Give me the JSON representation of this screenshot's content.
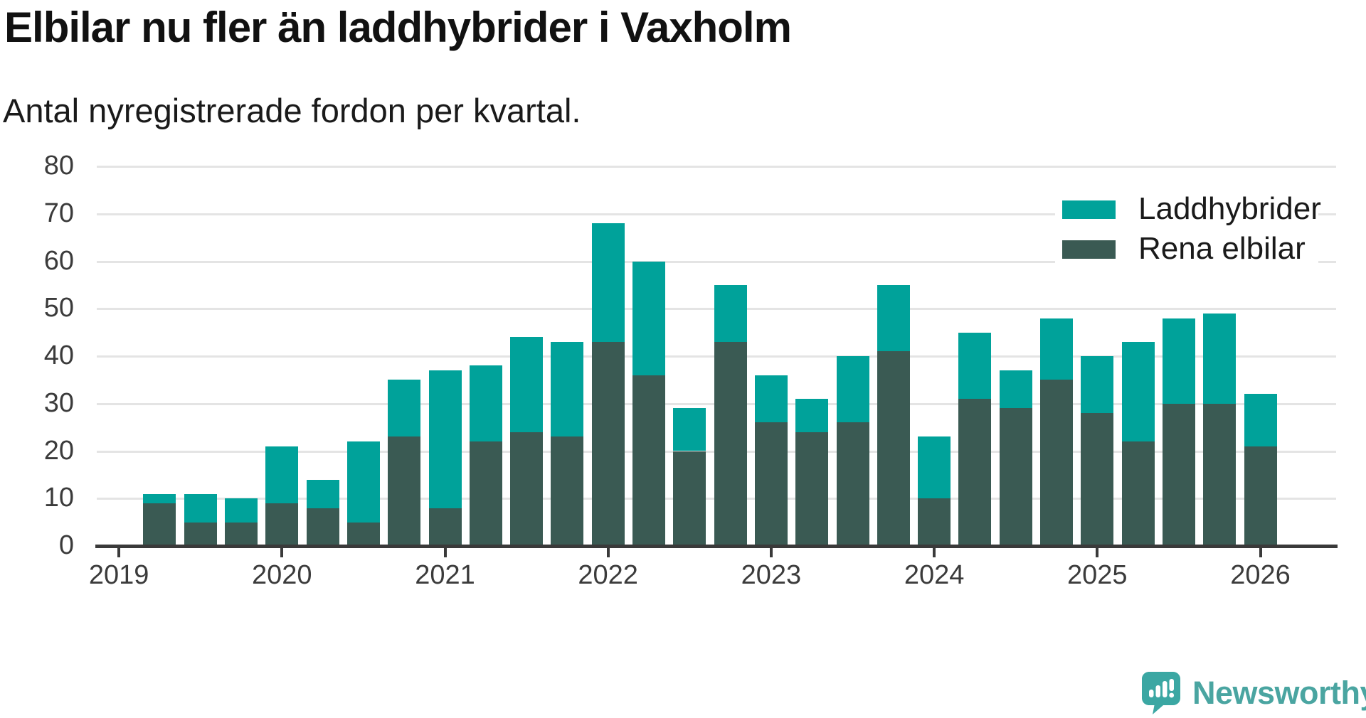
{
  "title": "Elbilar nu fler än laddhybrider i Vaxholm",
  "subtitle": "Antal nyregistrerade fordon per kvartal.",
  "legend": {
    "position": "top-right",
    "items": [
      {
        "label": "Laddhybrider",
        "color": "#00a29a"
      },
      {
        "label": "Rena elbilar",
        "color": "#3a5a53"
      }
    ]
  },
  "branding": {
    "name": "Newsworthy",
    "color": "#4aa5a1",
    "icon": "newsworthy-speech-bubble-bar-chart-icon"
  },
  "colors": {
    "background": "#ffffff",
    "laddhybrider": "#00a29a",
    "rena_elbilar": "#3a5a53",
    "gridline": "#e4e4e4",
    "axis": "#3a3a3a",
    "axis_text": "#3b3b3b",
    "title_text": "#111111"
  },
  "chart_data": {
    "type": "bar",
    "stacked": true,
    "stacked_bottom_to_top": true,
    "title": "Elbilar nu fler än laddhybrider i Vaxholm",
    "subtitle": "Antal nyregistrerade fordon per kvartal.",
    "xlabel": "",
    "ylabel": "",
    "ylim": [
      0,
      80
    ],
    "ytick_step": 10,
    "grid": "horizontal",
    "legend_position": "top-right",
    "x_tick_labels": [
      "2019",
      "2020",
      "2021",
      "2022",
      "2023",
      "2024",
      "2025",
      "2026"
    ],
    "categories": [
      "2019 Q2",
      "2019 Q3",
      "2019 Q4",
      "2020 Q1",
      "2020 Q2",
      "2020 Q3",
      "2020 Q4",
      "2021 Q1",
      "2021 Q2",
      "2021 Q3",
      "2021 Q4",
      "2022 Q1",
      "2022 Q2",
      "2022 Q3",
      "2022 Q4",
      "2023 Q1",
      "2023 Q2",
      "2023 Q3",
      "2023 Q4",
      "2024 Q1",
      "2024 Q2",
      "2024 Q3",
      "2024 Q4",
      "2025 Q1",
      "2025 Q2",
      "2025 Q3",
      "2025 Q4",
      "2026 Q1"
    ],
    "series": [
      {
        "name": "Rena elbilar",
        "color": "#3a5a53",
        "values": [
          9,
          5,
          5,
          9,
          8,
          5,
          23,
          8,
          22,
          24,
          23,
          43,
          36,
          20,
          43,
          26,
          24,
          26,
          41,
          10,
          31,
          29,
          35,
          28,
          22,
          30,
          30,
          21
        ]
      },
      {
        "name": "Laddhybrider",
        "color": "#00a29a",
        "values": [
          2,
          6,
          5,
          12,
          6,
          17,
          12,
          29,
          16,
          20,
          20,
          25,
          24,
          9,
          12,
          10,
          7,
          14,
          14,
          13,
          14,
          8,
          13,
          12,
          21,
          18,
          19,
          11
        ]
      }
    ],
    "totals": [
      11,
      11,
      10,
      21,
      14,
      22,
      35,
      37,
      38,
      44,
      43,
      68,
      60,
      29,
      55,
      36,
      31,
      40,
      55,
      23,
      45,
      37,
      48,
      40,
      43,
      48,
      49,
      32
    ]
  }
}
